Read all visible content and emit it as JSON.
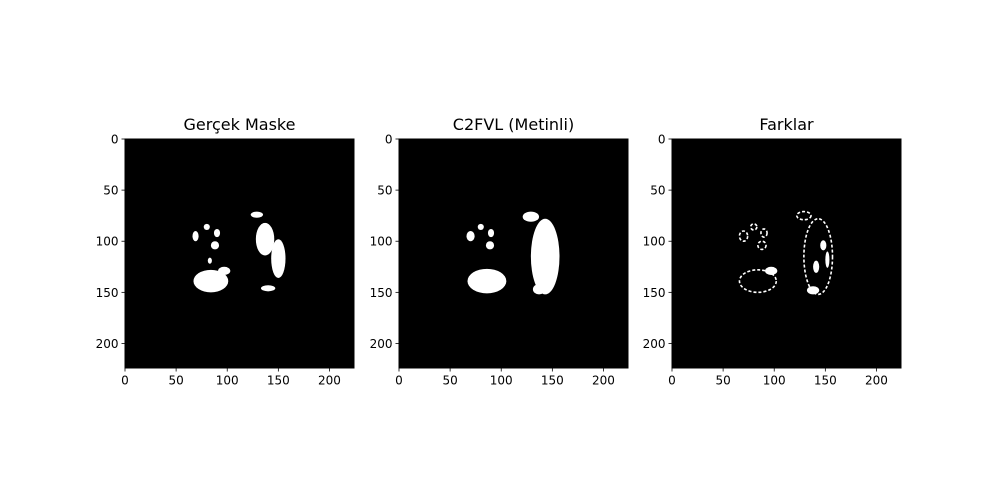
{
  "chart_data": [
    {
      "type": "heatmap",
      "title": "Gerçek Maske",
      "xlabel": "",
      "ylabel": "",
      "xlim": [
        0,
        224
      ],
      "ylim": [
        224,
        0
      ],
      "xticks": [
        "0",
        "50",
        "100",
        "150",
        "200"
      ],
      "yticks": [
        "0",
        "50",
        "100",
        "150",
        "200"
      ],
      "colormap": "gray",
      "background": "#000000",
      "foreground": "#ffffff",
      "regions": [
        {
          "shape": "ellipse",
          "cx": 80,
          "cy": 86,
          "rx": 3,
          "ry": 3
        },
        {
          "shape": "ellipse",
          "cx": 69,
          "cy": 95,
          "rx": 3,
          "ry": 5
        },
        {
          "shape": "ellipse",
          "cx": 90,
          "cy": 92,
          "rx": 3,
          "ry": 4
        },
        {
          "shape": "ellipse",
          "cx": 88,
          "cy": 104,
          "rx": 4,
          "ry": 4
        },
        {
          "shape": "ellipse",
          "cx": 83,
          "cy": 119,
          "rx": 2,
          "ry": 3
        },
        {
          "shape": "ellipse",
          "cx": 84,
          "cy": 139,
          "rx": 17,
          "ry": 11
        },
        {
          "shape": "ellipse",
          "cx": 97,
          "cy": 129,
          "rx": 6,
          "ry": 4
        },
        {
          "shape": "ellipse",
          "cx": 129,
          "cy": 74,
          "rx": 6,
          "ry": 3
        },
        {
          "shape": "ellipse",
          "cx": 137,
          "cy": 98,
          "rx": 9,
          "ry": 16
        },
        {
          "shape": "ellipse",
          "cx": 150,
          "cy": 117,
          "rx": 7,
          "ry": 19
        },
        {
          "shape": "ellipse",
          "cx": 140,
          "cy": 146,
          "rx": 7,
          "ry": 3
        }
      ]
    },
    {
      "type": "heatmap",
      "title": "C2FVL (Metinli)",
      "xlabel": "",
      "ylabel": "",
      "xlim": [
        0,
        224
      ],
      "ylim": [
        224,
        0
      ],
      "xticks": [
        "0",
        "50",
        "100",
        "150",
        "200"
      ],
      "yticks": [
        "0",
        "50",
        "100",
        "150",
        "200"
      ],
      "colormap": "gray",
      "background": "#000000",
      "foreground": "#ffffff",
      "regions": [
        {
          "shape": "ellipse",
          "cx": 80,
          "cy": 86,
          "rx": 3,
          "ry": 3
        },
        {
          "shape": "ellipse",
          "cx": 70,
          "cy": 95,
          "rx": 4,
          "ry": 5
        },
        {
          "shape": "ellipse",
          "cx": 90,
          "cy": 92,
          "rx": 3,
          "ry": 4
        },
        {
          "shape": "ellipse",
          "cx": 89,
          "cy": 104,
          "rx": 4,
          "ry": 4
        },
        {
          "shape": "ellipse",
          "cx": 86,
          "cy": 139,
          "rx": 19,
          "ry": 12
        },
        {
          "shape": "ellipse",
          "cx": 129,
          "cy": 76,
          "rx": 8,
          "ry": 5
        },
        {
          "shape": "ellipse",
          "cx": 143,
          "cy": 115,
          "rx": 14,
          "ry": 37
        },
        {
          "shape": "ellipse",
          "cx": 137,
          "cy": 147,
          "rx": 6,
          "ry": 5
        }
      ]
    },
    {
      "type": "heatmap",
      "title": "Farklar",
      "xlabel": "",
      "ylabel": "",
      "xlim": [
        0,
        224
      ],
      "ylim": [
        224,
        0
      ],
      "xticks": [
        "0",
        "50",
        "100",
        "150",
        "200"
      ],
      "yticks": [
        "0",
        "50",
        "100",
        "150",
        "200"
      ],
      "colormap": "gray",
      "background": "#000000",
      "foreground": "#ffffff",
      "regions": [
        {
          "shape": "ellipse",
          "cx": 70,
          "cy": 95,
          "rx": 4,
          "ry": 5,
          "outline": true
        },
        {
          "shape": "ellipse",
          "cx": 80,
          "cy": 86,
          "rx": 3,
          "ry": 3,
          "outline": true
        },
        {
          "shape": "ellipse",
          "cx": 90,
          "cy": 92,
          "rx": 3,
          "ry": 4,
          "outline": true
        },
        {
          "shape": "ellipse",
          "cx": 88,
          "cy": 104,
          "rx": 4,
          "ry": 4,
          "outline": true
        },
        {
          "shape": "ellipse",
          "cx": 84,
          "cy": 139,
          "rx": 18,
          "ry": 11,
          "outline": true
        },
        {
          "shape": "ellipse",
          "cx": 97,
          "cy": 129,
          "rx": 6,
          "ry": 4
        },
        {
          "shape": "ellipse",
          "cx": 129,
          "cy": 75,
          "rx": 7,
          "ry": 4,
          "outline": true
        },
        {
          "shape": "ellipse",
          "cx": 143,
          "cy": 115,
          "rx": 14,
          "ry": 37,
          "outline": true
        },
        {
          "shape": "ellipse",
          "cx": 148,
          "cy": 104,
          "rx": 3,
          "ry": 5
        },
        {
          "shape": "ellipse",
          "cx": 141,
          "cy": 125,
          "rx": 3,
          "ry": 6
        },
        {
          "shape": "ellipse",
          "cx": 152,
          "cy": 118,
          "rx": 2,
          "ry": 8
        },
        {
          "shape": "ellipse",
          "cx": 138,
          "cy": 148,
          "rx": 6,
          "ry": 4
        }
      ]
    }
  ]
}
